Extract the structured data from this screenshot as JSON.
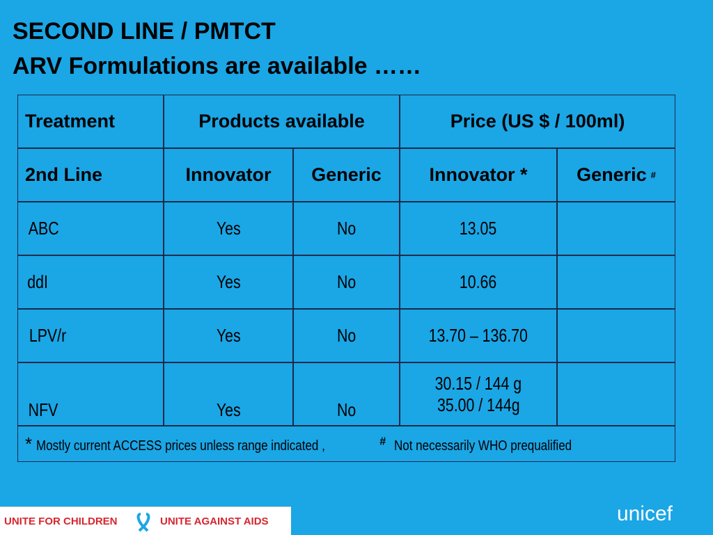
{
  "title": [
    "SECOND LINE / PMTCT",
    "ARV Formulations are available ……"
  ],
  "table": {
    "header": [
      "Treatment",
      "Products available",
      "Price (US $ / 100ml)"
    ],
    "subheader": [
      "2nd Line",
      "Innovator",
      "Generic",
      "Innovator *",
      "Generic"
    ],
    "subheader_mark": "#",
    "rows": [
      [
        "ABC",
        "Yes",
        "No",
        "13.05"
      ],
      [
        "ddI",
        "Yes",
        "No",
        "10.66"
      ],
      [
        "LPV/r",
        "Yes",
        "No",
        "13.70 – 136.70"
      ],
      [
        "NFV",
        "Yes",
        "No",
        [
          "30.15 / 144 g",
          "35.00 / 144g"
        ]
      ]
    ],
    "footnote": [
      "*",
      "Mostly current ACCESS prices unless range indicated ,",
      "#",
      "Not necessarily WHO prequalified"
    ]
  },
  "footer": {
    "left": [
      "UNITE FOR CHILDREN",
      "UNITE AGAINST AIDS"
    ],
    "right": "unicef"
  }
}
